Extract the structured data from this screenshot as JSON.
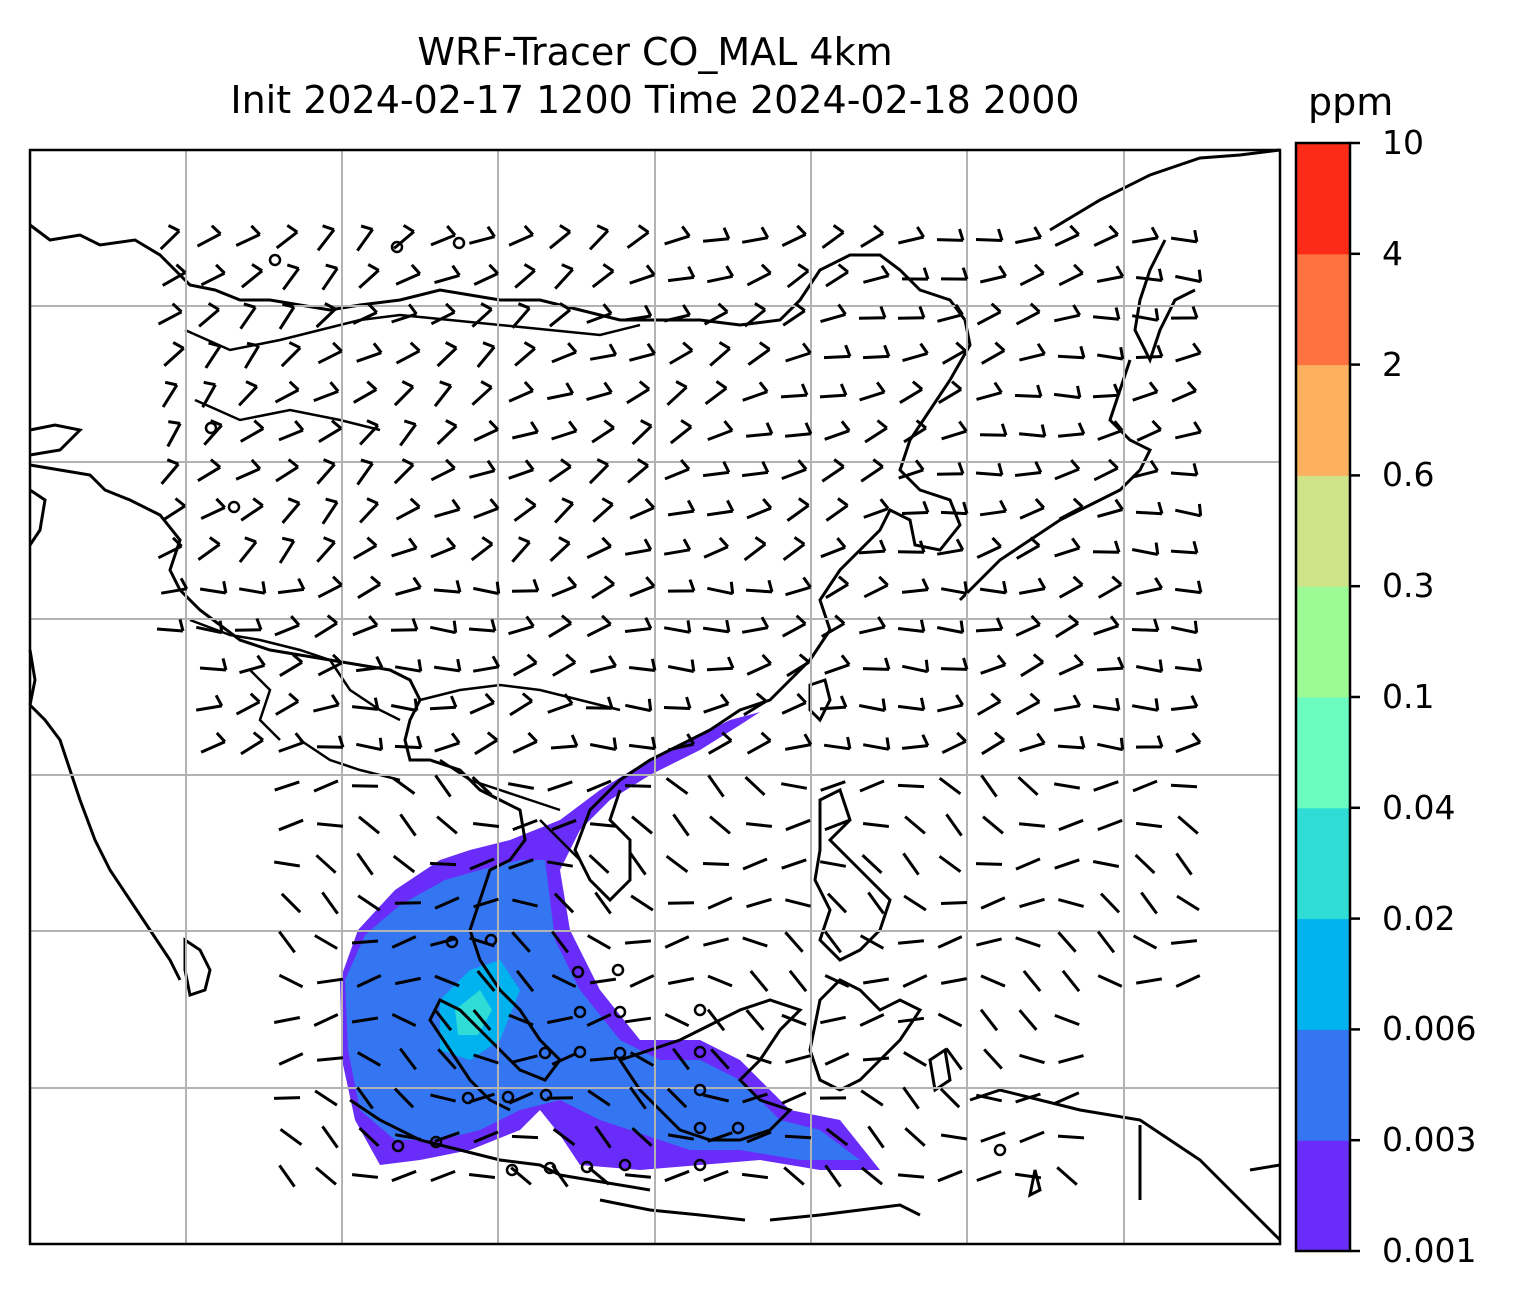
{
  "title_line1": "WRF-Tracer CO_MAL 4km",
  "title_line2": "Init 2024-02-17 1200 Time 2024-02-18 2000",
  "colorbar": {
    "unit": "ppm",
    "levels": [
      "0.001",
      "0.003",
      "0.006",
      "0.02",
      "0.04",
      "0.1",
      "0.3",
      "0.6",
      "2",
      "4",
      "10"
    ],
    "colors": [
      "#6a2cf8",
      "#3476f2",
      "#00b3ef",
      "#2fdcd6",
      "#6bfdbf",
      "#9cfb94",
      "#cfe389",
      "#fcb060",
      "#fe7140",
      "#fa2c17"
    ]
  },
  "map": {
    "gridlines": true,
    "field": "CO_MAL tracer concentration",
    "plume_levels_present": [
      "0.001-0.003",
      "0.003-0.006",
      "0.006-0.02",
      "0.02-0.04"
    ]
  }
}
